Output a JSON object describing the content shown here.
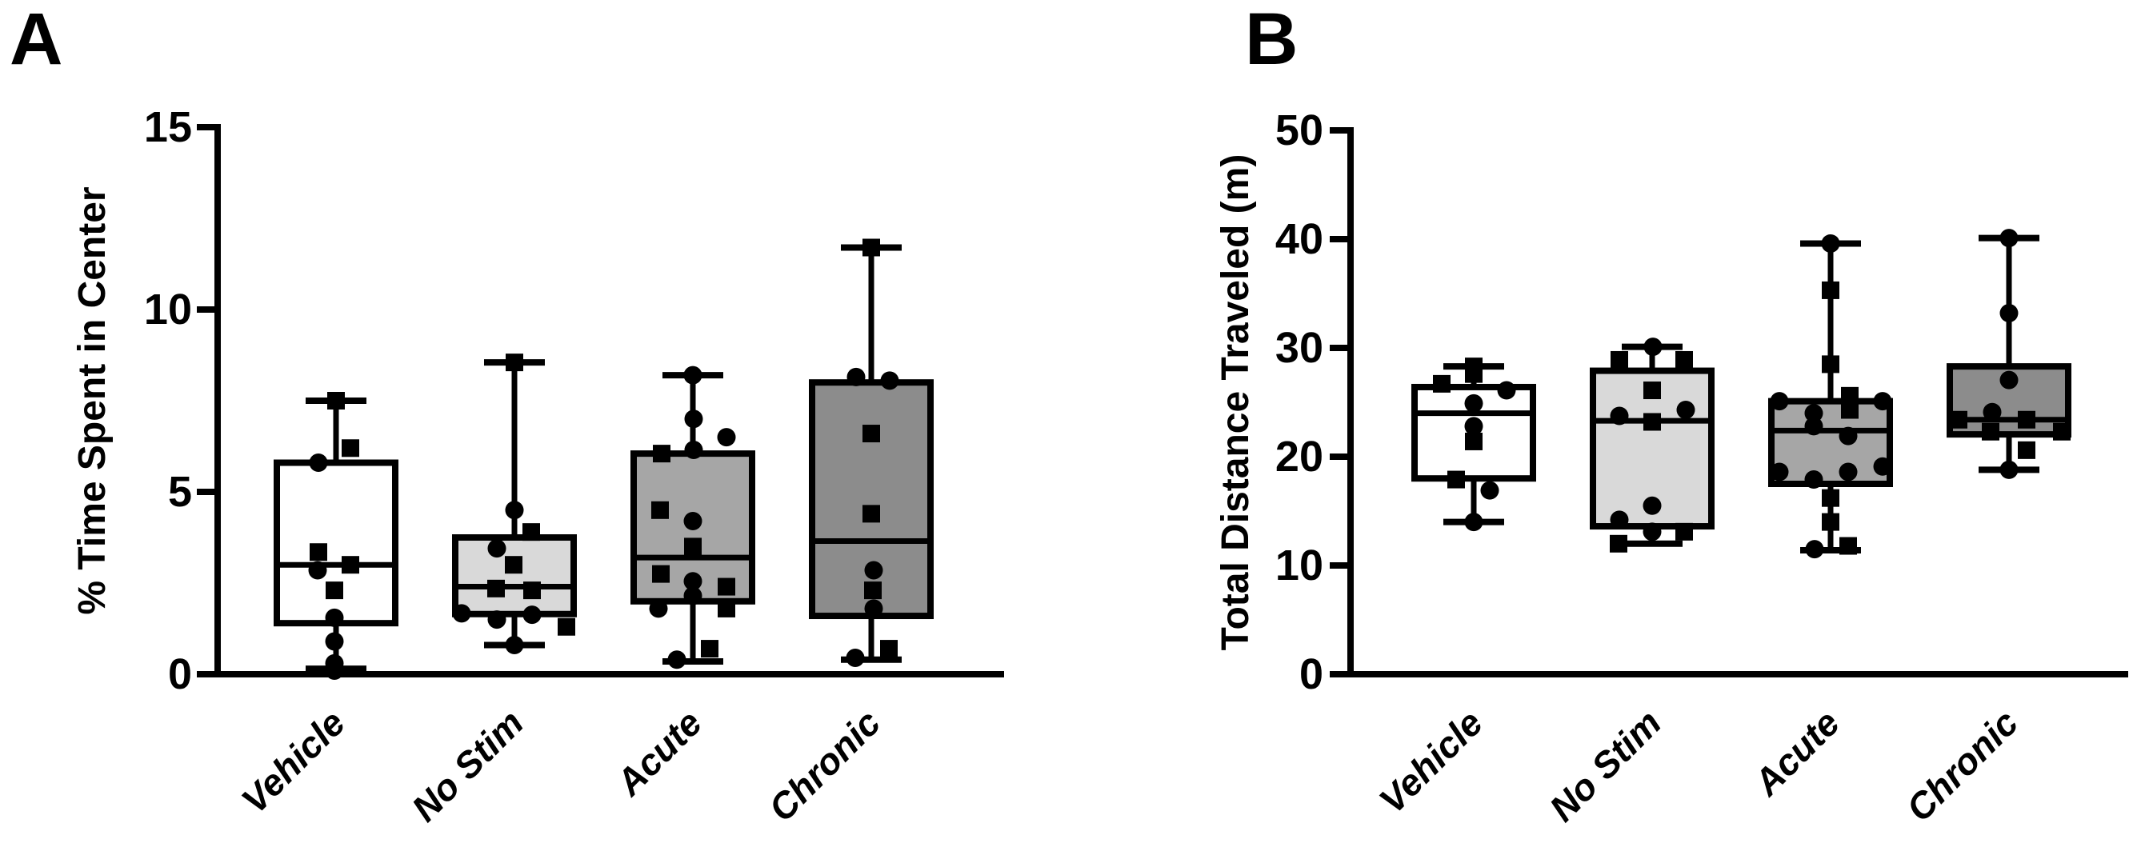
{
  "panels": [
    {
      "label": "A"
    },
    {
      "label": "B"
    }
  ],
  "marker_legend": {
    "circle": "circle-marker",
    "square": "square-marker"
  },
  "colors": {
    "vehicle_fill": "#ffffff",
    "no_stim_fill": "#d9d9d9",
    "acute_fill": "#a6a6a6",
    "chronic_fill": "#8c8c8c",
    "line": "#000000"
  },
  "chart_data": [
    {
      "type": "box",
      "title": "",
      "xlabel": "",
      "ylabel": "% Time Spent in Center",
      "ylim": [
        0,
        15
      ],
      "yticks": [
        0,
        5,
        10,
        15
      ],
      "grid": false,
      "legend": "none",
      "categories": [
        "Vehicle",
        "No Stim",
        "Acute",
        "Chronic"
      ],
      "groups": [
        {
          "name": "Vehicle",
          "fill": "#ffffff",
          "box": {
            "q1": 1.4,
            "median": 3.0,
            "q3": 5.8,
            "whisker_low": 0.15,
            "whisker_high": 7.5
          },
          "points": [
            {
              "v": 7.5,
              "dx": 0,
              "m": "square"
            },
            {
              "v": 6.2,
              "dx": 18,
              "m": "square"
            },
            {
              "v": 5.8,
              "dx": -22,
              "m": "circle"
            },
            {
              "v": 3.35,
              "dx": -22,
              "m": "square"
            },
            {
              "v": 3.0,
              "dx": 18,
              "m": "square"
            },
            {
              "v": 2.85,
              "dx": -23,
              "m": "circle"
            },
            {
              "v": 2.3,
              "dx": -2,
              "m": "square"
            },
            {
              "v": 1.55,
              "dx": -2,
              "m": "circle"
            },
            {
              "v": 0.9,
              "dx": -2,
              "m": "circle"
            },
            {
              "v": 0.3,
              "dx": -2,
              "m": "circle"
            },
            {
              "v": 0.1,
              "dx": -2,
              "m": "circle"
            }
          ]
        },
        {
          "name": "No Stim",
          "fill": "#d9d9d9",
          "box": {
            "q1": 1.65,
            "median": 2.4,
            "q3": 3.75,
            "whisker_low": 0.8,
            "whisker_high": 8.55
          },
          "points": [
            {
              "v": 8.55,
              "dx": 0,
              "m": "square"
            },
            {
              "v": 4.5,
              "dx": 0,
              "m": "circle"
            },
            {
              "v": 3.9,
              "dx": 21,
              "m": "square"
            },
            {
              "v": 3.45,
              "dx": -22,
              "m": "circle"
            },
            {
              "v": 3.0,
              "dx": -1,
              "m": "square"
            },
            {
              "v": 2.35,
              "dx": -23,
              "m": "square"
            },
            {
              "v": 2.3,
              "dx": 22,
              "m": "square"
            },
            {
              "v": 1.67,
              "dx": -66,
              "m": "circle"
            },
            {
              "v": 1.63,
              "dx": 22,
              "m": "circle"
            },
            {
              "v": 1.5,
              "dx": -22,
              "m": "circle"
            },
            {
              "v": 1.3,
              "dx": 65,
              "m": "square"
            },
            {
              "v": 0.8,
              "dx": 0,
              "m": "circle"
            }
          ]
        },
        {
          "name": "Acute",
          "fill": "#a6a6a6",
          "box": {
            "q1": 2.0,
            "median": 3.2,
            "q3": 6.05,
            "whisker_low": 0.35,
            "whisker_high": 8.2
          },
          "points": [
            {
              "v": 8.2,
              "dx": 0,
              "m": "circle"
            },
            {
              "v": 7.0,
              "dx": 1,
              "m": "circle"
            },
            {
              "v": 6.5,
              "dx": 42,
              "m": "circle"
            },
            {
              "v": 6.15,
              "dx": 1,
              "m": "circle"
            },
            {
              "v": 6.05,
              "dx": -39,
              "m": "square"
            },
            {
              "v": 4.5,
              "dx": -41,
              "m": "square"
            },
            {
              "v": 4.2,
              "dx": 0,
              "m": "circle"
            },
            {
              "v": 3.5,
              "dx": 0,
              "m": "square"
            },
            {
              "v": 2.75,
              "dx": -40,
              "m": "square"
            },
            {
              "v": 2.55,
              "dx": 0,
              "m": "circle"
            },
            {
              "v": 2.4,
              "dx": 42,
              "m": "square"
            },
            {
              "v": 2.15,
              "dx": 0,
              "m": "circle"
            },
            {
              "v": 1.8,
              "dx": -43,
              "m": "circle"
            },
            {
              "v": 1.8,
              "dx": 42,
              "m": "square"
            },
            {
              "v": 0.7,
              "dx": 21,
              "m": "square"
            },
            {
              "v": 0.4,
              "dx": -20,
              "m": "circle"
            }
          ]
        },
        {
          "name": "Chronic",
          "fill": "#8c8c8c",
          "box": {
            "q1": 1.6,
            "median": 3.65,
            "q3": 8.0,
            "whisker_low": 0.4,
            "whisker_high": 11.7
          },
          "points": [
            {
              "v": 11.7,
              "dx": 0,
              "m": "square"
            },
            {
              "v": 8.15,
              "dx": -19,
              "m": "circle"
            },
            {
              "v": 8.05,
              "dx": 23,
              "m": "circle"
            },
            {
              "v": 6.6,
              "dx": 0,
              "m": "square"
            },
            {
              "v": 4.4,
              "dx": 0,
              "m": "square"
            },
            {
              "v": 2.85,
              "dx": 3,
              "m": "circle"
            },
            {
              "v": 2.3,
              "dx": 2,
              "m": "square"
            },
            {
              "v": 1.8,
              "dx": 3,
              "m": "circle"
            },
            {
              "v": 0.7,
              "dx": 22,
              "m": "square"
            },
            {
              "v": 0.45,
              "dx": -20,
              "m": "circle"
            }
          ]
        }
      ]
    },
    {
      "type": "box",
      "title": "",
      "xlabel": "",
      "ylabel": "Total Distance Traveled (m)",
      "ylim": [
        0,
        50
      ],
      "yticks": [
        0,
        10,
        20,
        30,
        40,
        50
      ],
      "grid": false,
      "legend": "none",
      "categories": [
        "Vehicle",
        "No Stim",
        "Acute",
        "Chronic"
      ],
      "groups": [
        {
          "name": "Vehicle",
          "fill": "#ffffff",
          "box": {
            "q1": 18.0,
            "median": 24.0,
            "q3": 26.4,
            "whisker_low": 14.0,
            "whisker_high": 28.3
          },
          "points": [
            {
              "v": 28.3,
              "dx": 0,
              "m": "square"
            },
            {
              "v": 27.6,
              "dx": 0,
              "m": "square"
            },
            {
              "v": 26.7,
              "dx": -40,
              "m": "square"
            },
            {
              "v": 26.1,
              "dx": 41,
              "m": "circle"
            },
            {
              "v": 24.9,
              "dx": 0,
              "m": "circle"
            },
            {
              "v": 22.8,
              "dx": 0,
              "m": "circle"
            },
            {
              "v": 21.4,
              "dx": 0,
              "m": "square"
            },
            {
              "v": 17.9,
              "dx": -22,
              "m": "square"
            },
            {
              "v": 16.9,
              "dx": 20,
              "m": "circle"
            },
            {
              "v": 14.0,
              "dx": 0,
              "m": "circle"
            }
          ]
        },
        {
          "name": "No Stim",
          "fill": "#d9d9d9",
          "box": {
            "q1": 13.6,
            "median": 23.3,
            "q3": 27.9,
            "whisker_low": 12.0,
            "whisker_high": 30.1
          },
          "points": [
            {
              "v": 30.1,
              "dx": 1,
              "m": "circle"
            },
            {
              "v": 28.9,
              "dx": -41,
              "m": "square"
            },
            {
              "v": 28.9,
              "dx": 40,
              "m": "square"
            },
            {
              "v": 26.1,
              "dx": 0,
              "m": "square"
            },
            {
              "v": 24.3,
              "dx": 42,
              "m": "circle"
            },
            {
              "v": 23.75,
              "dx": -41,
              "m": "circle"
            },
            {
              "v": 23.2,
              "dx": 0,
              "m": "square"
            },
            {
              "v": 15.5,
              "dx": 0,
              "m": "circle"
            },
            {
              "v": 14.2,
              "dx": -41,
              "m": "circle"
            },
            {
              "v": 13.1,
              "dx": 0,
              "m": "circle"
            },
            {
              "v": 13.1,
              "dx": 40,
              "m": "square"
            },
            {
              "v": 12.0,
              "dx": -42,
              "m": "square"
            }
          ]
        },
        {
          "name": "Acute",
          "fill": "#a6a6a6",
          "box": {
            "q1": 17.5,
            "median": 22.4,
            "q3": 25.1,
            "whisker_low": 11.4,
            "whisker_high": 39.6
          },
          "points": [
            {
              "v": 39.6,
              "dx": 0,
              "m": "circle"
            },
            {
              "v": 35.3,
              "dx": 0,
              "m": "square"
            },
            {
              "v": 28.5,
              "dx": 0,
              "m": "square"
            },
            {
              "v": 25.6,
              "dx": 24,
              "m": "square"
            },
            {
              "v": 25.1,
              "dx": -64,
              "m": "circle"
            },
            {
              "v": 25.1,
              "dx": 65,
              "m": "circle"
            },
            {
              "v": 24.3,
              "dx": 24,
              "m": "square"
            },
            {
              "v": 24.0,
              "dx": -21,
              "m": "circle"
            },
            {
              "v": 22.8,
              "dx": -21,
              "m": "circle"
            },
            {
              "v": 21.9,
              "dx": 22,
              "m": "circle"
            },
            {
              "v": 19.1,
              "dx": 65,
              "m": "circle"
            },
            {
              "v": 18.6,
              "dx": -64,
              "m": "circle"
            },
            {
              "v": 18.6,
              "dx": 22,
              "m": "circle"
            },
            {
              "v": 17.9,
              "dx": -21,
              "m": "circle"
            },
            {
              "v": 16.2,
              "dx": 0,
              "m": "square"
            },
            {
              "v": 14.0,
              "dx": 0,
              "m": "square"
            },
            {
              "v": 11.8,
              "dx": 22,
              "m": "square"
            },
            {
              "v": 11.5,
              "dx": -20,
              "m": "circle"
            }
          ]
        },
        {
          "name": "Chronic",
          "fill": "#8c8c8c",
          "box": {
            "q1": 22.05,
            "median": 23.4,
            "q3": 28.3,
            "whisker_low": 18.8,
            "whisker_high": 40.1
          },
          "points": [
            {
              "v": 40.1,
              "dx": 0,
              "m": "circle"
            },
            {
              "v": 33.2,
              "dx": 0,
              "m": "circle"
            },
            {
              "v": 27.05,
              "dx": 0,
              "m": "circle"
            },
            {
              "v": 24.1,
              "dx": -21,
              "m": "circle"
            },
            {
              "v": 23.4,
              "dx": -63,
              "m": "square"
            },
            {
              "v": 23.4,
              "dx": 22,
              "m": "square"
            },
            {
              "v": 22.3,
              "dx": -23,
              "m": "square"
            },
            {
              "v": 22.3,
              "dx": 66,
              "m": "square"
            },
            {
              "v": 20.6,
              "dx": 22,
              "m": "square"
            },
            {
              "v": 18.8,
              "dx": 0,
              "m": "circle"
            }
          ]
        }
      ]
    }
  ]
}
